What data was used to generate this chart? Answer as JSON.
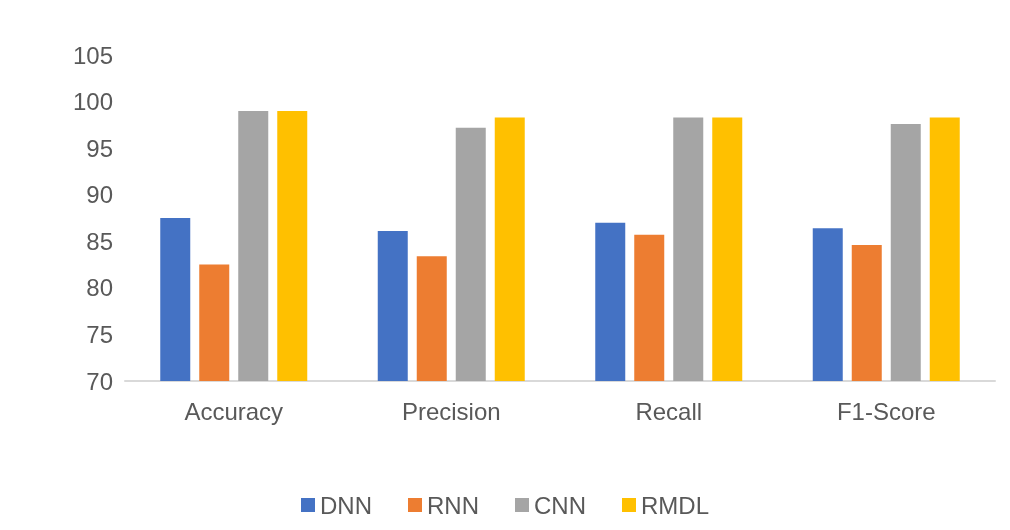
{
  "chart_data": {
    "type": "bar",
    "categories": [
      "Accuracy",
      "Precision",
      "Recall",
      "F1-Score"
    ],
    "series": [
      {
        "name": "DNN",
        "color": "#4472c4",
        "values": [
          87.5,
          86.1,
          87.0,
          86.4
        ]
      },
      {
        "name": "RNN",
        "color": "#ed7d31",
        "values": [
          82.5,
          83.4,
          85.7,
          84.6
        ]
      },
      {
        "name": "CNN",
        "color": "#a5a5a5",
        "values": [
          99.0,
          97.2,
          98.3,
          97.6
        ]
      },
      {
        "name": "RMDL",
        "color": "#ffc000",
        "values": [
          99.0,
          98.3,
          98.3,
          98.3
        ]
      }
    ],
    "ylim": [
      70,
      105
    ],
    "yticks": [
      70,
      75,
      80,
      85,
      90,
      95,
      100,
      105
    ],
    "grid": false,
    "legend": "bottom"
  }
}
